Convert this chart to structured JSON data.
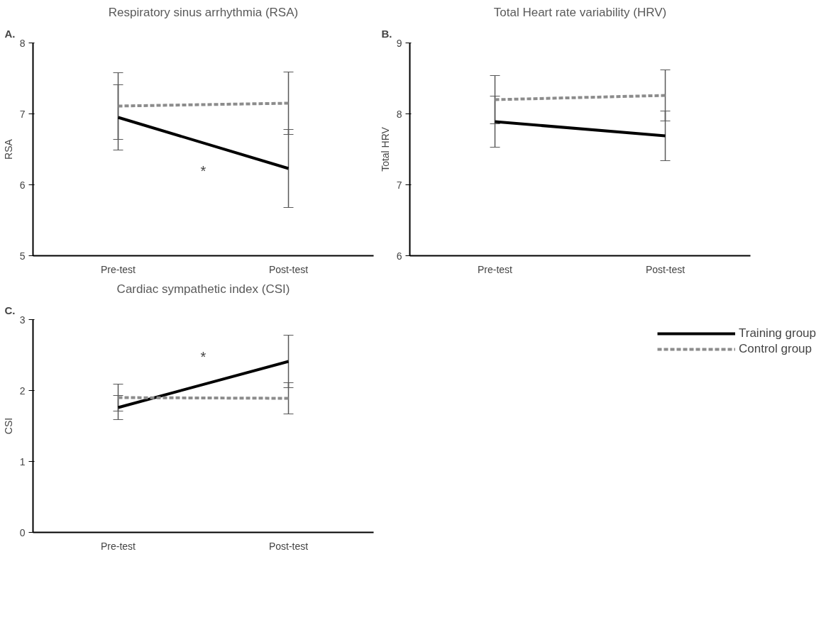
{
  "chart_data": [
    {
      "type": "line",
      "title": "Respiratory sinus arrhythmia (RSA)",
      "ylabel": "RSA",
      "categories": [
        "Pre-test",
        "Post-test"
      ],
      "ylim": [
        5,
        8
      ],
      "yticks": [
        5,
        6,
        7,
        8
      ],
      "grid": false,
      "legend": false,
      "marker": "none",
      "series": [
        {
          "color": "#000000",
          "values": [
            6.95,
            6.23
          ],
          "errors": [
            0.46,
            0.55
          ],
          "line_style": "solid"
        },
        {
          "color": "#8c8c8c",
          "values": [
            7.11,
            7.15
          ],
          "errors": [
            0.47,
            0.44
          ],
          "line_style": "dashed"
        }
      ],
      "annotations": [
        "A.",
        "*"
      ]
    },
    {
      "type": "line",
      "title": "Total Heart rate variability (HRV)",
      "ylabel": "Total HRV",
      "categories": [
        "Pre-test",
        "Post-test"
      ],
      "ylim": [
        6,
        9
      ],
      "yticks": [
        6,
        7,
        8,
        9
      ],
      "grid": false,
      "legend": false,
      "marker": "none",
      "series": [
        {
          "color": "#000000",
          "values": [
            7.89,
            7.69
          ],
          "errors": [
            0.36,
            0.35
          ],
          "line_style": "solid"
        },
        {
          "color": "#8c8c8c",
          "values": [
            8.2,
            8.26
          ],
          "errors": [
            0.34,
            0.36
          ],
          "line_style": "dashed"
        }
      ],
      "annotations": [
        "B."
      ]
    },
    {
      "type": "line",
      "title": "Cardiac sympathetic index (CSI)",
      "ylabel": "CSI",
      "categories": [
        "Pre-test",
        "Post-test"
      ],
      "ylim": [
        0,
        3
      ],
      "yticks": [
        0,
        1,
        2,
        3
      ],
      "grid": false,
      "legend": "top right",
      "marker": "none",
      "series": [
        {
          "name": "Training group",
          "color": "#000000",
          "values": [
            1.76,
            2.41
          ],
          "errors": [
            0.17,
            0.37
          ],
          "line_style": "solid"
        },
        {
          "name": "Control group",
          "color": "#8c8c8c",
          "values": [
            1.9,
            1.89
          ],
          "errors": [
            0.19,
            0.22
          ],
          "line_style": "dashed"
        }
      ],
      "annotations": [
        "C.",
        "*"
      ]
    }
  ]
}
